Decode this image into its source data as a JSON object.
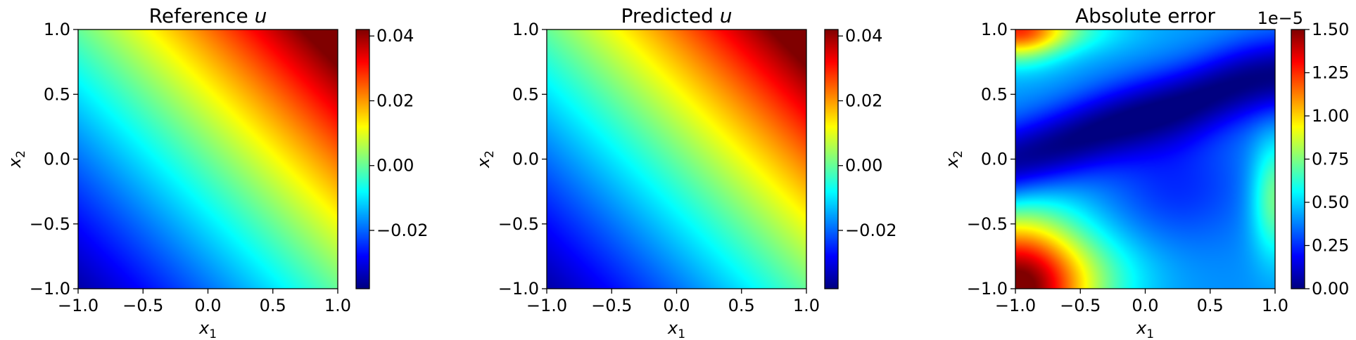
{
  "chart_data": [
    {
      "type": "heatmap",
      "title": "Reference",
      "title_var": "u",
      "xlabel": "x",
      "xlabel_sub": "1",
      "ylabel": "x",
      "ylabel_sub": "2",
      "xlim": [
        -1.0,
        1.0
      ],
      "ylim": [
        -1.0,
        1.0
      ],
      "xticks": [
        -1.0,
        -0.5,
        0.0,
        0.5,
        1.0
      ],
      "xtick_labels": [
        "−1.0",
        "−0.5",
        "0.0",
        "0.5",
        "1.0"
      ],
      "yticks": [
        -1.0,
        -0.5,
        0.0,
        0.5,
        1.0
      ],
      "ytick_labels": [
        "−1.0",
        "−0.5",
        "0.0",
        "0.5",
        "1.0"
      ],
      "colormap": "jet",
      "colorbar": {
        "range": [
          -0.038,
          0.042
        ],
        "ticks": [
          -0.02,
          0.0,
          0.02,
          0.04
        ],
        "tick_labels": [
          "−0.02",
          "0.00",
          "0.02",
          "0.04"
        ],
        "offset_label": ""
      },
      "field": "0.021*(x1+x2)*exp(0.09*(x1+x2))"
    },
    {
      "type": "heatmap",
      "title": "Predicted",
      "title_var": "u",
      "xlabel": "x",
      "xlabel_sub": "1",
      "ylabel": "x",
      "ylabel_sub": "2",
      "xlim": [
        -1.0,
        1.0
      ],
      "ylim": [
        -1.0,
        1.0
      ],
      "xticks": [
        -1.0,
        -0.5,
        0.0,
        0.5,
        1.0
      ],
      "xtick_labels": [
        "−1.0",
        "−0.5",
        "0.0",
        "0.5",
        "1.0"
      ],
      "yticks": [
        -1.0,
        -0.5,
        0.0,
        0.5,
        1.0
      ],
      "ytick_labels": [
        "−1.0",
        "−0.5",
        "0.0",
        "0.5",
        "1.0"
      ],
      "colormap": "jet",
      "colorbar": {
        "range": [
          -0.038,
          0.042
        ],
        "ticks": [
          -0.02,
          0.0,
          0.02,
          0.04
        ],
        "tick_labels": [
          "−0.02",
          "0.00",
          "0.02",
          "0.04"
        ],
        "offset_label": ""
      },
      "field": "0.021*(x1+x2)*exp(0.09*(x1+x2))"
    },
    {
      "type": "heatmap",
      "title": "Absolute error",
      "title_var": "",
      "xlabel": "x",
      "xlabel_sub": "1",
      "ylabel": "x",
      "ylabel_sub": "2",
      "xlim": [
        -1.0,
        1.0
      ],
      "ylim": [
        -1.0,
        1.0
      ],
      "xticks": [
        -1.0,
        -0.5,
        0.0,
        0.5,
        1.0
      ],
      "xtick_labels": [
        "−1.0",
        "−0.5",
        "0.0",
        "0.5",
        "1.0"
      ],
      "yticks": [
        -1.0,
        -0.5,
        0.0,
        0.5,
        1.0
      ],
      "ytick_labels": [
        "−1.0",
        "−0.5",
        "0.0",
        "0.5",
        "1.0"
      ],
      "colormap": "jet",
      "colorbar": {
        "range": [
          0.0,
          1.5e-05
        ],
        "ticks": [
          0.0,
          2.5e-06,
          5e-06,
          7.5e-06,
          1e-05,
          1.25e-05,
          1.5e-05
        ],
        "tick_labels": [
          "0.00",
          "0.25",
          "0.50",
          "0.75",
          "1.00",
          "1.25",
          "1.50"
        ],
        "offset_label": "1e−5"
      },
      "field": "error-pattern: max ~1.5e-5 at (-1,-1), dark valley from (-1,0.2) through (0,0.5) to (0.9,0.8), ~0.9e-5 at (-1,1)"
    }
  ]
}
